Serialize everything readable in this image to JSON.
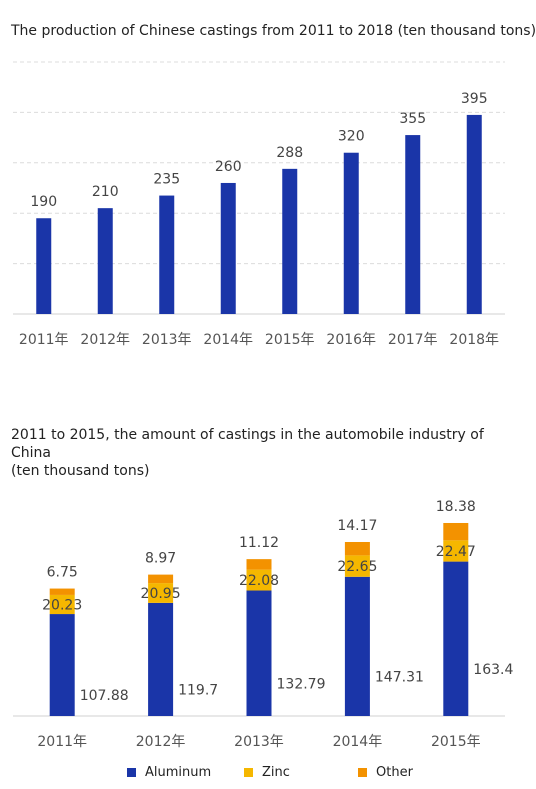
{
  "chart_data": [
    {
      "type": "bar",
      "title": "The production of Chinese castings from 2011 to 2018 (ten thousand tons)",
      "categories": [
        "2011年",
        "2012年",
        "2013年",
        "2014年",
        "2015年",
        "2016年",
        "2017年",
        "2018年"
      ],
      "values": [
        190,
        210,
        235,
        260,
        288,
        320,
        355,
        395
      ],
      "ylim": [
        0,
        500
      ],
      "grid": true,
      "colors": {
        "bar": "#1a35a8",
        "grid": "#dcdcdc"
      }
    },
    {
      "type": "bar",
      "stacked": true,
      "title_lines": [
        "2011 to 2015, the amount of castings in the automobile industry of China",
        " (ten thousand tons)"
      ],
      "categories": [
        "2011年",
        "2012年",
        "2013年",
        "2014年",
        "2015年"
      ],
      "series": [
        {
          "name": "Aluminum",
          "color": "#1a35a8",
          "values": [
            107.88,
            119.7,
            132.79,
            147.31,
            163.4
          ]
        },
        {
          "name": "Zinc",
          "color": "#f5b700",
          "values": [
            20.23,
            20.95,
            22.08,
            22.65,
            22.47
          ]
        },
        {
          "name": "Other",
          "color": "#f39200",
          "values": [
            6.75,
            8.97,
            11.12,
            14.17,
            18.38
          ]
        }
      ],
      "data_labels": [
        [
          "107.88",
          "20.23",
          "6.75"
        ],
        [
          "119.7",
          "20.95",
          "8.97"
        ],
        [
          "132.79",
          "22.08",
          "11.12"
        ],
        [
          "147.31",
          "22.65",
          "14.17"
        ],
        [
          "163.4",
          "22.47",
          "18.38"
        ]
      ],
      "legend_position": "bottom"
    }
  ]
}
